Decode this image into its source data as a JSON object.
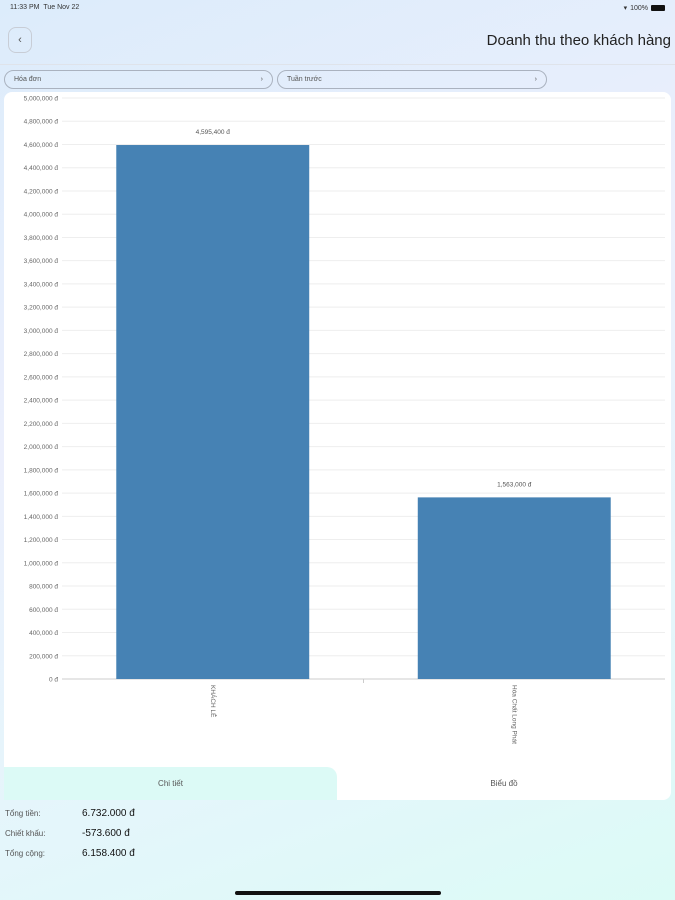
{
  "status": {
    "time": "11:33 PM",
    "date": "Tue Nov 22",
    "battery": "100%"
  },
  "header": {
    "back_icon": "chevron-left-icon",
    "title": "Doanh thu theo khách hàng"
  },
  "filters": [
    {
      "label": "Hóa đơn"
    },
    {
      "label": "Tuần trước"
    }
  ],
  "chart_data": {
    "type": "bar",
    "categories": [
      "KHÁCH LẺ",
      "Hóa Chất Long Phát"
    ],
    "values": [
      4595400,
      1563000
    ],
    "data_labels": [
      "4,595,400 đ",
      "1,563,000 đ"
    ],
    "ylim": [
      0,
      5000000
    ],
    "ytick_step": 200000,
    "ytick_suffix": " đ",
    "grid": true,
    "bar_color": "#4682b4"
  },
  "tabs": [
    {
      "label": "Chi tiết"
    },
    {
      "label": "Biểu đồ"
    }
  ],
  "summary": [
    {
      "label": "Tổng tiền:",
      "value": "6.732.000 đ"
    },
    {
      "label": "Chiết khấu:",
      "value": "-573.600 đ"
    },
    {
      "label": "Tổng cộng:",
      "value": "6.158.400 đ"
    }
  ]
}
